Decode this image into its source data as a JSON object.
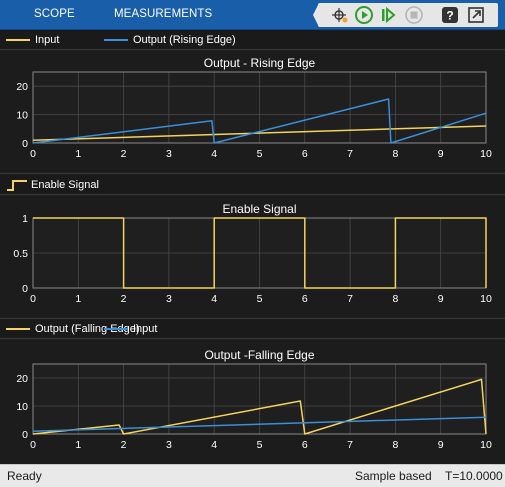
{
  "toolstrip": {
    "tabs": [
      "SCOPE",
      "MEASUREMENTS"
    ],
    "buttons": [
      "signal-selector-icon",
      "run-icon",
      "step-forward-icon",
      "stop-icon",
      "help-icon",
      "undock-icon"
    ],
    "colors": {
      "background": "#195ea8",
      "toolbar": "#e6e6e6",
      "run": "#2ca02c",
      "step": "#2ca02c"
    }
  },
  "colors": {
    "yellow": "#f4d35e",
    "blue": "#3a8fd8",
    "axes_bg": "#1f1f1f",
    "grid": "#4a4a4a",
    "text": "#ffffff"
  },
  "plots": [
    {
      "legend": [
        "Input",
        "Output (Rising Edge)"
      ],
      "chart_data": {
        "type": "line",
        "title": "Output - Rising Edge",
        "xlim": [
          0,
          10
        ],
        "ylim": [
          0,
          25
        ],
        "xticks": [
          "0",
          "1",
          "2",
          "3",
          "4",
          "5",
          "6",
          "7",
          "8",
          "9",
          "10"
        ],
        "yticks": [
          "0",
          "10",
          "20"
        ],
        "grid": true,
        "series": [
          {
            "name": "Input",
            "color": "yellow",
            "x": [
              0,
              10
            ],
            "y": [
              1,
              6
            ]
          },
          {
            "name": "Output (Rising Edge)",
            "color": "blue",
            "x": [
              0,
              3.95,
              4.0,
              7.85,
              7.9,
              10
            ],
            "y": [
              0,
              7.8,
              0,
              15.5,
              0,
              10.5
            ]
          }
        ]
      }
    },
    {
      "legend": [
        "Enable Signal"
      ],
      "chart_data": {
        "type": "line",
        "title": "Enable Signal",
        "xlim": [
          0,
          10
        ],
        "ylim": [
          0,
          1
        ],
        "xticks": [
          "0",
          "1",
          "2",
          "3",
          "4",
          "5",
          "6",
          "7",
          "8",
          "9",
          "10"
        ],
        "yticks": [
          "0",
          "0.5",
          "1"
        ],
        "grid": true,
        "series": [
          {
            "name": "Enable Signal",
            "color": "yellow",
            "x": [
              0,
              2,
              2,
              4,
              4,
              6,
              6,
              8,
              8,
              10,
              10
            ],
            "y": [
              1,
              1,
              0,
              0,
              1,
              1,
              0,
              0,
              1,
              1,
              0
            ]
          }
        ]
      }
    },
    {
      "legend": [
        "Output (Falling Edge)",
        "Input"
      ],
      "chart_data": {
        "type": "line",
        "title": "Output -Falling Edge",
        "xlim": [
          0,
          10
        ],
        "ylim": [
          0,
          25
        ],
        "xticks": [
          "0",
          "1",
          "2",
          "3",
          "4",
          "5",
          "6",
          "7",
          "8",
          "9",
          "10"
        ],
        "yticks": [
          "0",
          "10",
          "20"
        ],
        "grid": true,
        "series": [
          {
            "name": "Output (Falling Edge)",
            "color": "yellow",
            "x": [
              0,
              1.9,
              2.0,
              5.9,
              6.0,
              9.9,
              10.0
            ],
            "y": [
              0,
              3.2,
              0,
              11.8,
              0,
              19.5,
              0
            ]
          },
          {
            "name": "Input",
            "color": "blue",
            "x": [
              0,
              10
            ],
            "y": [
              1,
              6
            ]
          }
        ]
      }
    }
  ],
  "status": {
    "ready": "Ready",
    "mode": "Sample based",
    "time": "T=10.0000"
  }
}
